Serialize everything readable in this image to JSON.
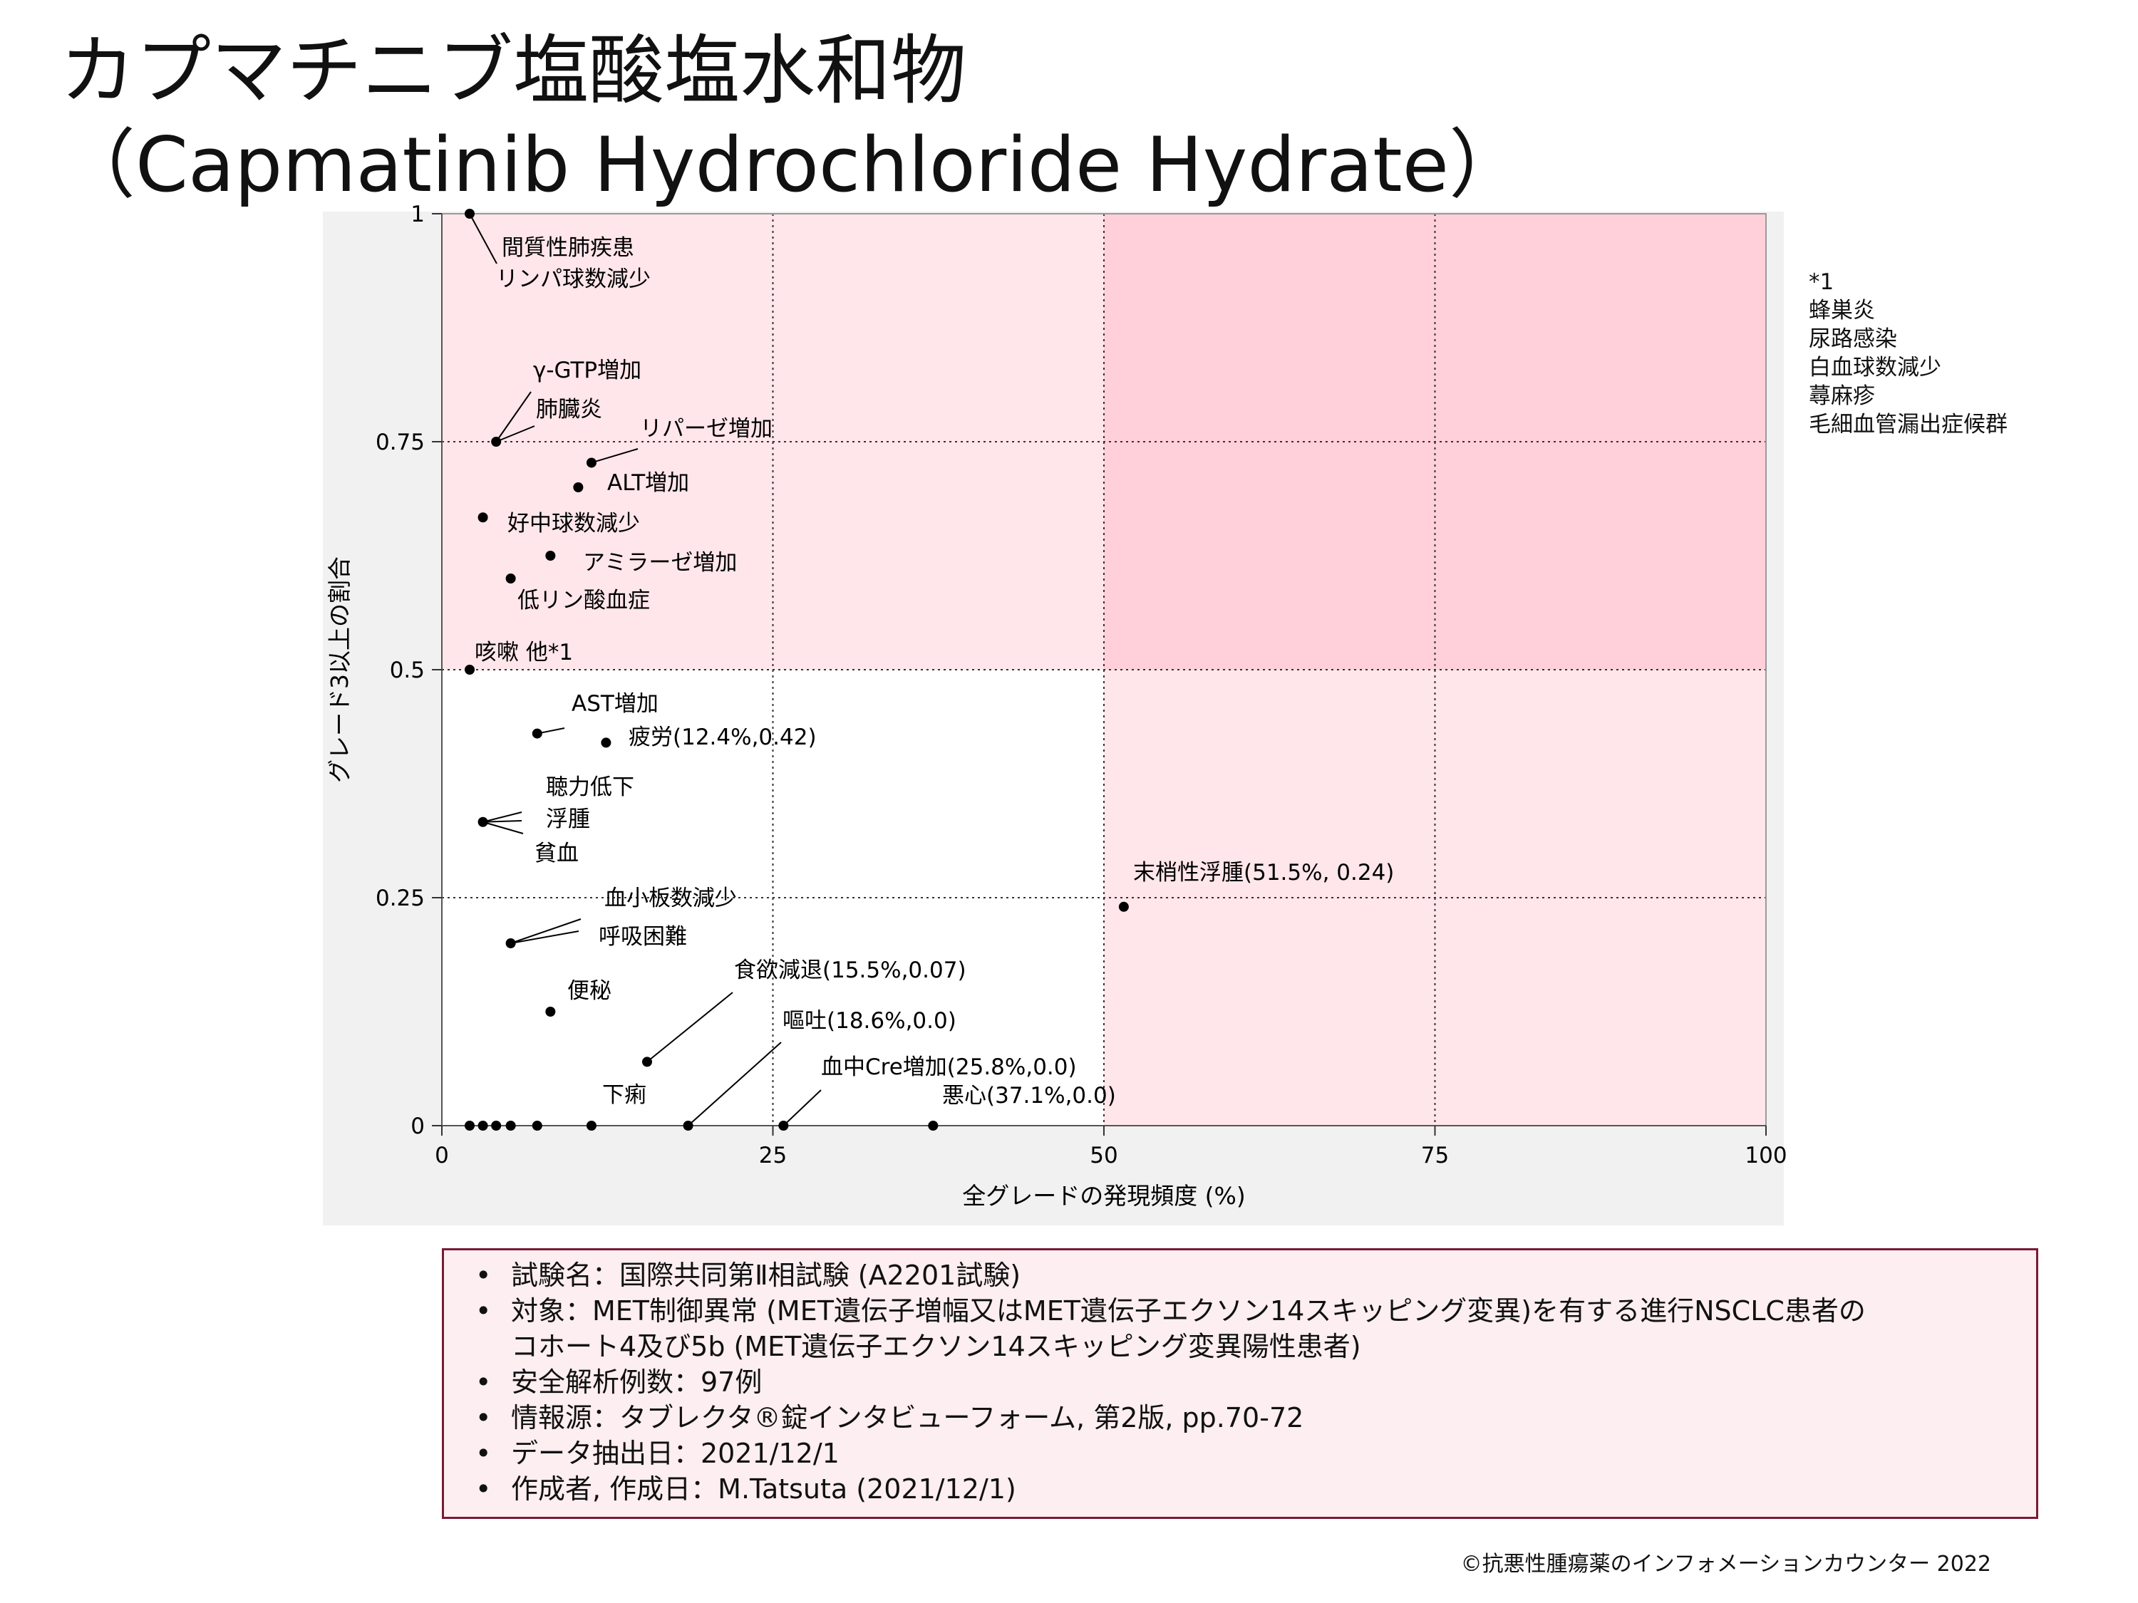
{
  "title": {
    "line1": "カプマチニブ塩酸塩水和物",
    "line2": "（Capmatinib Hydrochloride Hydrate）"
  },
  "colors": {
    "plot_bg": "#ffe6ea",
    "zone_bg": "#ffd0da",
    "outer_bg": "#f1f1f1",
    "point": "#000000",
    "box_border": "#7a1a35",
    "box_bg": "#fdeef1"
  },
  "chart_data": {
    "type": "scatter",
    "xlabel": "全グレードの発現頻度 (%)",
    "ylabel": "グレード3以上の割合",
    "xlim": [
      0,
      100
    ],
    "ylim": [
      0,
      1
    ],
    "x_ticks": [
      0,
      25,
      50,
      75,
      100
    ],
    "y_ticks": [
      0,
      0.25,
      0.5,
      0.75,
      1
    ],
    "x_tick_labels": [
      "0",
      "25",
      "50",
      "75",
      "100"
    ],
    "y_tick_labels": [
      "0",
      "0.25",
      "0.5",
      "0.75",
      "1"
    ],
    "gridlines": "dotted at 25, 50, 75 (x) and 0.25, 0.5, 0.75 (y)",
    "shaded_zones": [
      {
        "x": [
          0,
          100
        ],
        "y": [
          0.5,
          1
        ],
        "shade": "light"
      },
      {
        "x": [
          50,
          100
        ],
        "y": [
          0,
          0.5
        ],
        "shade": "light"
      },
      {
        "x": [
          50,
          100
        ],
        "y": [
          0.5,
          1
        ],
        "shade": "dark"
      }
    ],
    "points": [
      {
        "x": 2.1,
        "y": 1.0,
        "label": "間質性肺疾患"
      },
      {
        "x": 2.1,
        "y": 1.0,
        "label": "リンパ球数減少"
      },
      {
        "x": 4.1,
        "y": 0.75,
        "label": "γ-GTP増加"
      },
      {
        "x": 4.1,
        "y": 0.75,
        "label": "肺臓炎"
      },
      {
        "x": 11.3,
        "y": 0.727,
        "label": "リパーゼ増加"
      },
      {
        "x": 10.3,
        "y": 0.7,
        "label": "ALT増加"
      },
      {
        "x": 3.1,
        "y": 0.667,
        "label": "好中球数減少"
      },
      {
        "x": 8.2,
        "y": 0.625,
        "label": "アミラーゼ増加"
      },
      {
        "x": 5.2,
        "y": 0.6,
        "label": "低リン酸血症"
      },
      {
        "x": 2.1,
        "y": 0.5,
        "label": "咳嗽 他*1"
      },
      {
        "x": 7.2,
        "y": 0.43,
        "label": "AST増加"
      },
      {
        "x": 12.4,
        "y": 0.42,
        "label": "疲労(12.4%,0.42)"
      },
      {
        "x": 3.1,
        "y": 0.333,
        "label": "聴力低下"
      },
      {
        "x": 3.1,
        "y": 0.333,
        "label": "浮腫"
      },
      {
        "x": 3.1,
        "y": 0.333,
        "label": "貧血"
      },
      {
        "x": 5.2,
        "y": 0.2,
        "label": "血小板数減少"
      },
      {
        "x": 5.2,
        "y": 0.2,
        "label": "呼吸困難"
      },
      {
        "x": 8.2,
        "y": 0.125,
        "label": "便秘"
      },
      {
        "x": 15.5,
        "y": 0.07,
        "label": "食欲減退(15.5%,0.07)"
      },
      {
        "x": 18.6,
        "y": 0.0,
        "label": "嘔吐(18.6%,0.0)"
      },
      {
        "x": 25.8,
        "y": 0.0,
        "label": "血中Cre増加(25.8%,0.0)"
      },
      {
        "x": 37.1,
        "y": 0.0,
        "label": "悪心(37.1%,0.0)"
      },
      {
        "x": 11.3,
        "y": 0.0,
        "label": "下痢"
      },
      {
        "x": 51.5,
        "y": 0.24,
        "label": "末梢性浮腫(51.5%, 0.24)"
      },
      {
        "x": 2.1,
        "y": 0.0,
        "label": ""
      },
      {
        "x": 3.1,
        "y": 0.0,
        "label": ""
      },
      {
        "x": 4.1,
        "y": 0.0,
        "label": ""
      },
      {
        "x": 5.2,
        "y": 0.0,
        "label": ""
      },
      {
        "x": 7.2,
        "y": 0.0,
        "label": ""
      }
    ]
  },
  "footnote": {
    "items": [
      "*1",
      "蜂巣炎",
      "尿路感染",
      "白血球数減少",
      "蕁麻疹",
      "毛細血管漏出症候群"
    ]
  },
  "info": {
    "items": [
      "試験名：国際共同第Ⅱ相試験 (A2201試験)",
      "対象：MET制御異常 (MET遺伝子増幅又はMET遺伝子エクソン14スキッピング変異)を有する進行NSCLC患者の\nコホート4及び5b (MET遺伝子エクソン14スキッピング変異陽性患者)",
      "安全解析例数：97例",
      "情報源：タブレクタ®錠インタビューフォーム, 第2版, pp.70-72",
      "データ抽出日：2021/12/1",
      "作成者, 作成日：M.Tatsuta (2021/12/1)"
    ]
  },
  "copyright": "©抗悪性腫瘍薬のインフォメーションカウンター  2022"
}
